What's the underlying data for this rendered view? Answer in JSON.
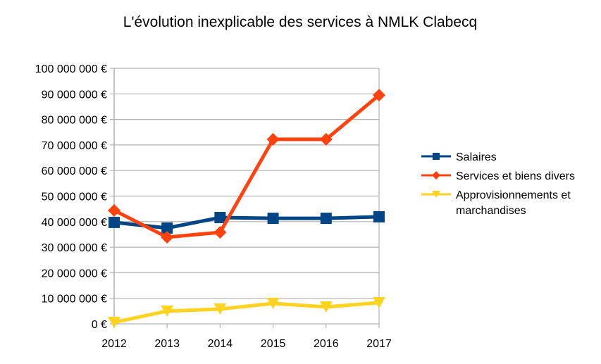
{
  "chart_data": {
    "type": "line",
    "title": "L'évolution inexplicable des services à NMLK Clabecq",
    "xlabel": "",
    "ylabel": "",
    "categories": [
      "2012",
      "2013",
      "2014",
      "2015",
      "2016",
      "2017"
    ],
    "ylim": [
      0,
      100000000
    ],
    "ytick_step": 10000000,
    "ytick_labels": [
      "0 €",
      "10 000 000 €",
      "20 000 000 €",
      "30 000 000 €",
      "40 000 000 €",
      "50 000 000 €",
      "60 000 000 €",
      "70 000 000 €",
      "80 000 000 €",
      "90 000 000 €",
      "100 000 000 €"
    ],
    "grid": true,
    "legend_position": "right",
    "series": [
      {
        "name": "Salaires",
        "color": "#004586",
        "marker": "square",
        "values": [
          39700000,
          37500000,
          41600000,
          41300000,
          41300000,
          41900000
        ]
      },
      {
        "name": "Services et biens divers",
        "color": "#ff420e",
        "marker": "diamond",
        "values": [
          44400000,
          33900000,
          35800000,
          72200000,
          72200000,
          89500000
        ]
      },
      {
        "name": "Approvisionnements et marchandises",
        "legend_lines": [
          "Approvisionnements et",
          "marchandises"
        ],
        "color": "#ffd320",
        "marker": "triangle-down",
        "values": [
          600000,
          5000000,
          5800000,
          8000000,
          6600000,
          8300000
        ]
      }
    ]
  }
}
